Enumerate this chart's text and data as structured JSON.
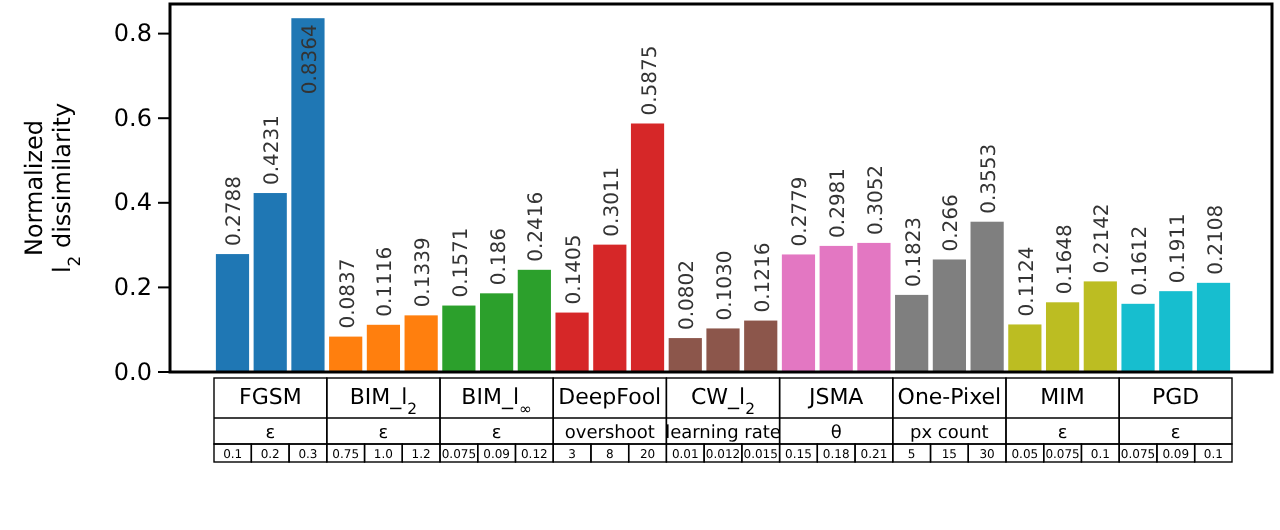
{
  "chart_data": {
    "type": "bar",
    "ylabel": "Normalized l$_{2}$ dissimilarity",
    "categories": [
      "0.1",
      "0.2",
      "0.3",
      "0.75",
      "1.0",
      "1.2",
      "0.075",
      "0.09",
      "0.12",
      "3",
      "8",
      "20",
      "0.01",
      "0.012",
      "0.015",
      "0.15",
      "0.18",
      "0.21",
      "5",
      "15",
      "30",
      "0.05",
      "0.075",
      "0.1",
      "0.075",
      "0.09",
      "0.1"
    ],
    "values": [
      0.2788,
      0.4231,
      0.8364,
      0.0837,
      0.1116,
      0.1339,
      0.1571,
      0.186,
      0.2416,
      0.1405,
      0.3011,
      0.5875,
      0.0802,
      0.103,
      0.1216,
      0.2779,
      0.2981,
      0.3052,
      0.1823,
      0.266,
      0.3553,
      0.1124,
      0.1648,
      0.2142,
      0.1612,
      0.1911,
      0.2108
    ],
    "value_labels": [
      "0.2788",
      "0.4231",
      "0.8364",
      "0.0837",
      "0.1116",
      "0.1339",
      "0.1571",
      "0.186",
      "0.2416",
      "0.1405",
      "0.3011",
      "0.5875",
      "0.0802",
      "0.1030",
      "0.1216",
      "0.2779",
      "0.2981",
      "0.3052",
      "0.1823",
      "0.266",
      "0.3553",
      "0.1124",
      "0.1648",
      "0.2142",
      "0.1612",
      "0.1911",
      "0.2108"
    ],
    "colors": [
      "#1f77b4",
      "#1f77b4",
      "#1f77b4",
      "#ff7f0e",
      "#ff7f0e",
      "#ff7f0e",
      "#2ca02c",
      "#2ca02c",
      "#2ca02c",
      "#d62728",
      "#d62728",
      "#d62728",
      "#8c564b",
      "#8c564b",
      "#8c564b",
      "#e377c2",
      "#e377c2",
      "#e377c2",
      "#7f7f7f",
      "#7f7f7f",
      "#7f7f7f",
      "#bcbd22",
      "#bcbd22",
      "#bcbd22",
      "#17becf",
      "#17becf",
      "#17becf"
    ],
    "annotations": [
      "FGSM",
      "ε",
      "BIM_l$_{2}$",
      "ε",
      "BIM_l$_{∞}$",
      "ε",
      "DeepFool",
      "overshoot",
      "CW_l$_{2}$",
      "learning rate",
      "JSMA",
      "θ",
      "One-Pixel",
      "px count",
      "MIM",
      "ε",
      "PGD",
      "ε"
    ],
    "ylim": [
      0,
      0.87
    ],
    "yticks": [
      {
        "value": 0,
        "label": "0.0"
      },
      {
        "value": 0.2,
        "label": "0.2"
      },
      {
        "value": 0.4,
        "label": "0.4"
      },
      {
        "value": 0.6,
        "label": "0.6"
      },
      {
        "value": 0.8,
        "label": "0.8"
      }
    ]
  }
}
